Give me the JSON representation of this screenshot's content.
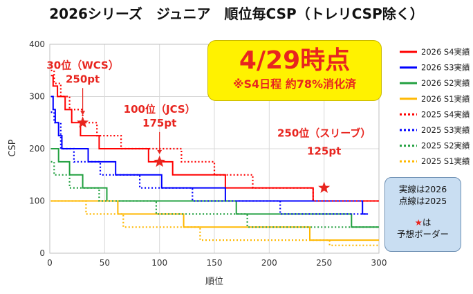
{
  "title": "2026シリーズ　ジュニア　順位毎CSP（トレリCSP除く）",
  "callout": {
    "main": "4/29時点",
    "sub": "※S4日程 約78%消化済"
  },
  "note": {
    "line1": "実線は2026",
    "line2": "点線は2025",
    "star": "★",
    "line3": "は",
    "line4": "予想ボーダー"
  },
  "chart_data": {
    "type": "line",
    "title": "2026シリーズ　ジュニア　順位毎CSP（トレリCSP除く）",
    "xlabel": "順位",
    "ylabel": "CSP",
    "xlim": [
      0,
      300
    ],
    "ylim": [
      0,
      400
    ],
    "xticks": [
      0,
      50,
      100,
      150,
      200,
      250,
      300
    ],
    "yticks": [
      0,
      100,
      200,
      300,
      400
    ],
    "grid": true,
    "legend_position": "right",
    "series": [
      {
        "name": "2026 S4実績",
        "color": "#ff0000",
        "style": "solid",
        "points": [
          [
            1,
            340
          ],
          [
            3,
            320
          ],
          [
            7,
            300
          ],
          [
            14,
            275
          ],
          [
            20,
            250
          ],
          [
            28,
            225
          ],
          [
            45,
            200
          ],
          [
            90,
            175
          ],
          [
            112,
            150
          ],
          [
            160,
            125
          ],
          [
            240,
            100
          ],
          [
            300,
            100
          ]
        ]
      },
      {
        "name": "2026 S3実績",
        "color": "#0000ff",
        "style": "solid",
        "points": [
          [
            1,
            300
          ],
          [
            3,
            275
          ],
          [
            5,
            250
          ],
          [
            8,
            225
          ],
          [
            11,
            200
          ],
          [
            35,
            175
          ],
          [
            60,
            150
          ],
          [
            102,
            125
          ],
          [
            160,
            100
          ],
          [
            285,
            75
          ],
          [
            290,
            75
          ]
        ]
      },
      {
        "name": "2026 S2実績",
        "color": "#22a040",
        "style": "solid",
        "points": [
          [
            1,
            200
          ],
          [
            8,
            175
          ],
          [
            18,
            150
          ],
          [
            30,
            125
          ],
          [
            52,
            100
          ],
          [
            170,
            75
          ],
          [
            275,
            50
          ],
          [
            300,
            50
          ]
        ]
      },
      {
        "name": "2026 S1実績",
        "color": "#ffb800",
        "style": "solid",
        "points": [
          [
            1,
            100
          ],
          [
            62,
            75
          ],
          [
            122,
            50
          ],
          [
            237,
            25
          ],
          [
            300,
            25
          ]
        ]
      },
      {
        "name": "2025 S4実績",
        "color": "#ff0000",
        "style": "dotted",
        "points": [
          [
            1,
            350
          ],
          [
            4,
            325
          ],
          [
            10,
            300
          ],
          [
            18,
            275
          ],
          [
            30,
            250
          ],
          [
            43,
            225
          ],
          [
            65,
            200
          ],
          [
            120,
            175
          ],
          [
            150,
            150
          ],
          [
            185,
            125
          ],
          [
            240,
            100
          ],
          [
            300,
            100
          ]
        ]
      },
      {
        "name": "2025 S3実績",
        "color": "#0000ff",
        "style": "dotted",
        "points": [
          [
            1,
            270
          ],
          [
            4,
            250
          ],
          [
            10,
            200
          ],
          [
            22,
            175
          ],
          [
            46,
            150
          ],
          [
            82,
            125
          ],
          [
            130,
            100
          ],
          [
            210,
            75
          ],
          [
            288,
            75
          ]
        ]
      },
      {
        "name": "2025 S2実績",
        "color": "#22a040",
        "style": "dotted",
        "points": [
          [
            1,
            175
          ],
          [
            4,
            150
          ],
          [
            18,
            125
          ],
          [
            45,
            100
          ],
          [
            97,
            75
          ],
          [
            180,
            50
          ],
          [
            300,
            50
          ]
        ]
      },
      {
        "name": "2025 S1実績",
        "color": "#ffb800",
        "style": "dotted",
        "points": [
          [
            1,
            100
          ],
          [
            33,
            75
          ],
          [
            67,
            50
          ],
          [
            137,
            25
          ],
          [
            255,
            15
          ],
          [
            300,
            15
          ]
        ]
      }
    ],
    "annotations": [
      {
        "label": "30位（WCS）",
        "value": "250pt",
        "x": 30,
        "y": 250
      },
      {
        "label": "100位（JCS）",
        "value": "175pt",
        "x": 100,
        "y": 175
      },
      {
        "label": "250位（スリーブ）",
        "value": "125pt",
        "x": 250,
        "y": 125
      }
    ]
  }
}
